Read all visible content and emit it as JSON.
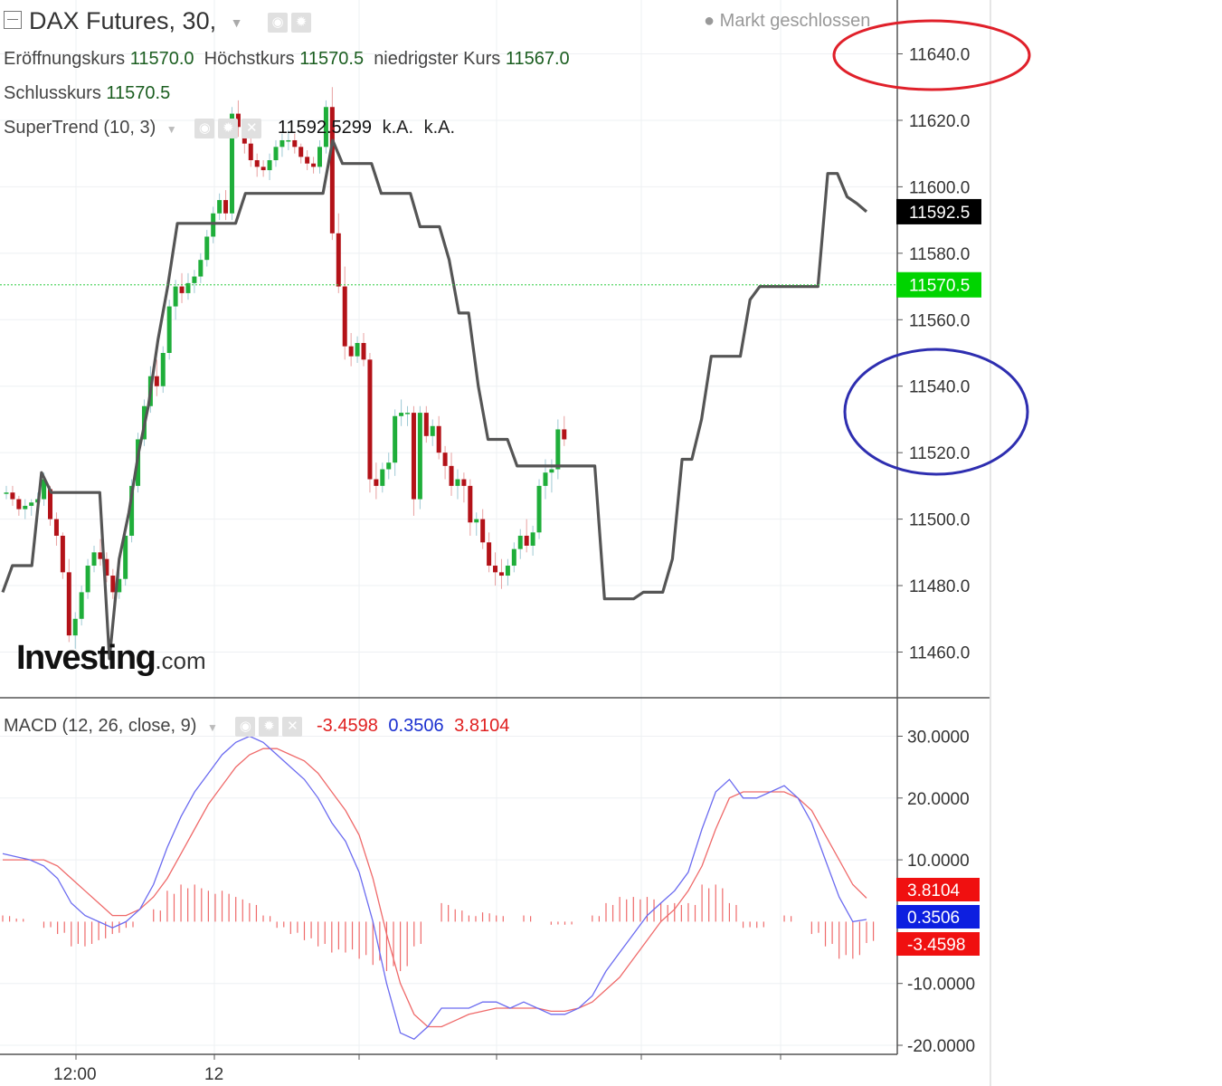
{
  "header": {
    "instrument": "DAX Futures, 30,",
    "market_status": "Markt geschlossen",
    "open_label": "Eröffnungskurs",
    "open_value": "11570.0",
    "high_label": "Höchstkurs",
    "high_value": "11570.5",
    "low_label": "niedrigster Kurs",
    "low_value": "11567.0",
    "close_label": "Schlusskurs",
    "close_value": "11570.5"
  },
  "supertrend": {
    "label": "SuperTrend (10, 3)",
    "value": "11592.5299",
    "na1": "k.A.",
    "na2": "k.A."
  },
  "macd_header": {
    "label": "MACD (12, 26, close, 9)",
    "v1": "-3.4598",
    "v2": "0.3506",
    "v3": "3.8104"
  },
  "logo": {
    "brand": "Investing",
    "suffix": ".com"
  },
  "colors": {
    "up": "#1fae3a",
    "down": "#b31218",
    "supertrend": "#555555",
    "macd_line": "#6b6bf0",
    "signal_line": "#ef6a6a",
    "hist": "#ef6a6a",
    "price_badge": "#00d400",
    "st_badge": "#000000",
    "blue_badge": "#0d1fe0",
    "red_badge": "#f01010",
    "annot_red": "#e0202a",
    "annot_blue": "#2e2eb0"
  },
  "chart_data": [
    {
      "type": "candlestick",
      "y_ticks": [
        "11640.0",
        "11620.0",
        "11600.0",
        "11580.0",
        "11560.0",
        "11540.0",
        "11520.0",
        "11500.0",
        "11480.0",
        "11460.0"
      ],
      "ylim": [
        11452,
        11655
      ],
      "x_ticks": [
        "12:00",
        "12"
      ],
      "price_line": 11570.5,
      "badges": [
        {
          "value": "11592.5"
        },
        {
          "value": "11570.5"
        }
      ],
      "supertrend": [
        11478,
        11486,
        11486,
        11486,
        11514,
        11508,
        11508,
        11508,
        11508,
        11508,
        11508,
        11458,
        11488,
        11502,
        11520,
        11534,
        11554,
        11570,
        11589,
        11589,
        11589,
        11589,
        11589,
        11589,
        11589,
        11598,
        11598,
        11598,
        11598,
        11598,
        11598,
        11598,
        11598,
        11598,
        11614,
        11607,
        11607,
        11607,
        11607,
        11598,
        11598,
        11598,
        11598,
        11588,
        11588,
        11588,
        11578,
        11562,
        11562,
        11540,
        11524,
        11524,
        11524,
        11516,
        11516,
        11516,
        11516,
        11516,
        11516,
        11516,
        11516,
        11516,
        11476,
        11476,
        11476,
        11476,
        11478,
        11478,
        11478,
        11488,
        11518,
        11518,
        11530,
        11549,
        11549,
        11549,
        11549,
        11566,
        11570,
        11570,
        11570,
        11570,
        11570,
        11570,
        11570,
        11604,
        11604,
        11597,
        11595,
        11592.5
      ],
      "candles": [
        [
          11508,
          11510,
          11506,
          11508
        ],
        [
          11508,
          11510,
          11504,
          11506
        ],
        [
          11506,
          11507,
          11501,
          11503
        ],
        [
          11503,
          11506,
          11500,
          11504
        ],
        [
          11504,
          11506,
          11501,
          11505
        ],
        [
          11505,
          11508,
          11503,
          11506
        ],
        [
          11506,
          11514,
          11504,
          11512
        ],
        [
          11509,
          11510,
          11498,
          11500
        ],
        [
          11500,
          11502,
          11492,
          11495
        ],
        [
          11495,
          11496,
          11482,
          11484
        ],
        [
          11484,
          11488,
          11463,
          11465
        ],
        [
          11465,
          11472,
          11461,
          11470
        ],
        [
          11470,
          11480,
          11468,
          11478
        ],
        [
          11478,
          11488,
          11476,
          11486
        ],
        [
          11486,
          11492,
          11484,
          11490
        ],
        [
          11490,
          11494,
          11486,
          11488
        ],
        [
          11488,
          11490,
          11481,
          11483
        ],
        [
          11483,
          11485,
          11476,
          11478
        ],
        [
          11478,
          11484,
          11476,
          11482
        ],
        [
          11482,
          11497,
          11480,
          11495
        ],
        [
          11495,
          11512,
          11493,
          11510
        ],
        [
          11510,
          11526,
          11508,
          11524
        ],
        [
          11524,
          11536,
          11522,
          11534
        ],
        [
          11534,
          11546,
          11532,
          11543
        ],
        [
          11543,
          11548,
          11537,
          11540
        ],
        [
          11540,
          11552,
          11538,
          11550
        ],
        [
          11550,
          11566,
          11548,
          11564
        ],
        [
          11564,
          11572,
          11560,
          11570
        ],
        [
          11570,
          11574,
          11565,
          11568
        ],
        [
          11568,
          11574,
          11566,
          11571
        ],
        [
          11571,
          11575,
          11568,
          11573
        ],
        [
          11573,
          11580,
          11571,
          11578
        ],
        [
          11578,
          11587,
          11576,
          11585
        ],
        [
          11585,
          11594,
          11583,
          11592
        ],
        [
          11592,
          11598,
          11590,
          11596
        ],
        [
          11596,
          11599,
          11590,
          11592
        ],
        [
          11592,
          11624,
          11590,
          11622
        ],
        [
          11622,
          11626,
          11615,
          11618
        ],
        [
          11618,
          11620,
          11610,
          11613
        ],
        [
          11613,
          11615,
          11606,
          11608
        ],
        [
          11608,
          11610,
          11603,
          11606
        ],
        [
          11606,
          11608,
          11603,
          11605
        ],
        [
          11605,
          11610,
          11602,
          11608
        ],
        [
          11608,
          11614,
          11606,
          11612
        ],
        [
          11612,
          11616,
          11609,
          11614
        ],
        [
          11614,
          11617,
          11611,
          11614
        ],
        [
          11614,
          11616,
          11610,
          11612
        ],
        [
          11612,
          11613,
          11607,
          11609
        ],
        [
          11609,
          11611,
          11605,
          11607
        ],
        [
          11607,
          11609,
          11604,
          11606
        ],
        [
          11606,
          11614,
          11604,
          11612
        ],
        [
          11612,
          11626,
          11610,
          11624
        ],
        [
          11624,
          11630,
          11584,
          11586
        ],
        [
          11586,
          11592,
          11568,
          11570
        ],
        [
          11570,
          11576,
          11548,
          11552
        ],
        [
          11552,
          11556,
          11546,
          11549
        ],
        [
          11549,
          11555,
          11547,
          11553
        ],
        [
          11553,
          11556,
          11546,
          11548
        ],
        [
          11548,
          11550,
          11508,
          11512
        ],
        [
          11512,
          11517,
          11506,
          11510
        ],
        [
          11510,
          11517,
          11508,
          11515
        ],
        [
          11515,
          11520,
          11512,
          11517
        ],
        [
          11517,
          11533,
          11513,
          11531
        ],
        [
          11531,
          11536,
          11528,
          11532
        ],
        [
          11532,
          11534,
          11528,
          11532
        ],
        [
          11532,
          11534,
          11501,
          11506
        ],
        [
          11506,
          11534,
          11503,
          11532
        ],
        [
          11532,
          11534,
          11523,
          11525
        ],
        [
          11525,
          11530,
          11522,
          11528
        ],
        [
          11528,
          11531,
          11518,
          11520
        ],
        [
          11520,
          11522,
          11512,
          11516
        ],
        [
          11516,
          11520,
          11507,
          11510
        ],
        [
          11510,
          11515,
          11506,
          11512
        ],
        [
          11512,
          11514,
          11505,
          11510
        ],
        [
          11510,
          11512,
          11495,
          11499
        ],
        [
          11499,
          11502,
          11495,
          11500
        ],
        [
          11500,
          11503,
          11491,
          11493
        ],
        [
          11493,
          11496,
          11484,
          11486
        ],
        [
          11486,
          11490,
          11480,
          11484
        ],
        [
          11484,
          11488,
          11479,
          11483
        ],
        [
          11483,
          11488,
          11480,
          11486
        ],
        [
          11486,
          11493,
          11484,
          11491
        ],
        [
          11491,
          11497,
          11488,
          11495
        ],
        [
          11495,
          11500,
          11490,
          11492
        ],
        [
          11492,
          11498,
          11489,
          11496
        ],
        [
          11496,
          11512,
          11494,
          11510
        ],
        [
          11510,
          11518,
          11506,
          11514
        ],
        [
          11514,
          11518,
          11508,
          11515
        ],
        [
          11515,
          11530,
          11512,
          11527
        ],
        [
          11527,
          11531,
          11522,
          11524
        ]
      ]
    },
    {
      "type": "macd",
      "y_ticks": [
        "30.0000",
        "20.0000",
        "10.0000",
        "-10.0000",
        "-20.0000"
      ],
      "ylim": [
        -21,
        31
      ],
      "badges": [
        {
          "value": "3.8104"
        },
        {
          "value": "0.3506"
        },
        {
          "value": "-3.4598"
        }
      ],
      "macd": [
        11,
        10.5,
        10,
        9,
        7,
        3,
        1,
        0,
        -1,
        0,
        2,
        6,
        12,
        17,
        21,
        24,
        27,
        29,
        30,
        29,
        27,
        25,
        23,
        20,
        16,
        13,
        8,
        0,
        -10,
        -18,
        -19,
        -17,
        -14,
        -14,
        -14,
        -13,
        -13,
        -14,
        -13,
        -14,
        -15,
        -15,
        -14,
        -12,
        -8,
        -5,
        -2,
        1,
        3,
        5,
        8,
        15,
        21,
        23,
        20,
        20,
        21,
        22,
        20,
        16,
        10,
        4,
        0,
        0.35
      ],
      "signal": [
        10,
        10,
        10,
        10,
        9,
        7,
        5,
        3,
        1,
        1,
        2,
        4,
        7,
        11,
        15,
        19,
        22,
        25,
        27,
        28,
        28,
        27,
        26,
        24,
        21,
        18,
        14,
        7,
        -2,
        -10,
        -15,
        -17,
        -17,
        -16,
        -15,
        -14.5,
        -14,
        -14,
        -14,
        -14,
        -14.5,
        -14.5,
        -14,
        -13,
        -11,
        -9,
        -6,
        -3,
        0,
        2,
        5,
        9,
        15,
        20,
        21,
        21,
        21,
        21,
        20,
        18,
        14,
        10,
        6,
        3.81
      ],
      "hist": [
        1,
        0.5,
        0,
        -1,
        -2,
        -4,
        -4,
        -3,
        -2,
        -1,
        0,
        2,
        5,
        6,
        6,
        5,
        5,
        4,
        3,
        1,
        -1,
        -2,
        -3,
        -4,
        -5,
        -5,
        -6,
        -7,
        -8,
        -8,
        -4,
        0,
        3,
        2,
        1,
        1.5,
        1,
        0,
        1,
        0,
        -0.5,
        -0.5,
        0,
        1,
        3,
        4,
        4,
        4,
        3,
        3,
        3,
        6,
        6,
        3,
        -1,
        -1,
        0,
        1,
        0,
        -2,
        -4,
        -6,
        -6,
        -3.46
      ]
    }
  ]
}
